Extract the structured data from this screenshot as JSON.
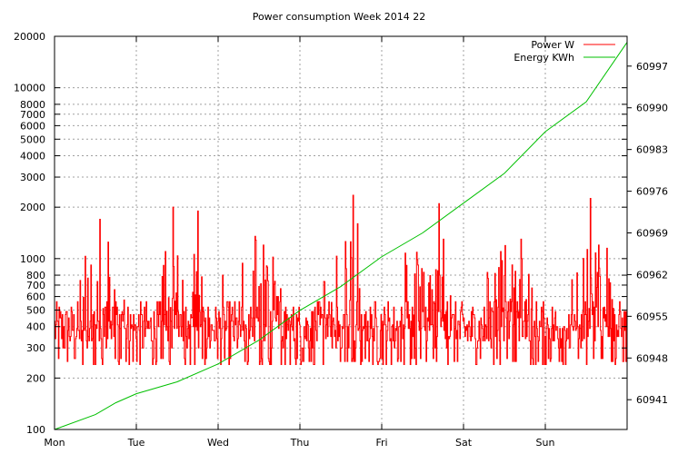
{
  "chart_data": {
    "type": "line",
    "title": "Power consumption Week 2014 22",
    "x_categories": [
      "Mon",
      "Tue",
      "Wed",
      "Thu",
      "Fri",
      "Sat",
      "Sun"
    ],
    "y_left": {
      "scale": "log",
      "range": [
        100,
        20000
      ],
      "ticks": [
        100,
        200,
        300,
        400,
        500,
        600,
        700,
        800,
        1000,
        2000,
        3000,
        4000,
        5000,
        6000,
        7000,
        8000,
        10000,
        20000
      ],
      "tick_labels": [
        "100",
        "200",
        "300",
        "400",
        "500",
        "600",
        "700",
        "800",
        "1000",
        "2000",
        "3000",
        "4000",
        "5000",
        "6000",
        "7000",
        "8000",
        "10000",
        "20000"
      ]
    },
    "y_right": {
      "range": [
        60936,
        61002
      ],
      "ticks": [
        60941,
        60948,
        60955,
        60962,
        60969,
        60976,
        60983,
        60990,
        60997
      ],
      "tick_labels": [
        "60941",
        "60948",
        "60955",
        "60962",
        "60969",
        "60976",
        "60983",
        "60990",
        "60997"
      ]
    },
    "grid": true,
    "legend_position": "top-right",
    "series": [
      {
        "name": "Power W",
        "color": "#ff0000",
        "axis": "left",
        "note_shape": "spiky baseline 240-450 W with daytime peaks",
        "peaks": [
          {
            "x": 0.55,
            "y": 1700
          },
          {
            "x": 0.65,
            "y": 1250
          },
          {
            "x": 1.35,
            "y": 1100
          },
          {
            "x": 1.45,
            "y": 2000
          },
          {
            "x": 1.75,
            "y": 1900
          },
          {
            "x": 2.05,
            "y": 800
          },
          {
            "x": 2.45,
            "y": 1350
          },
          {
            "x": 2.55,
            "y": 1200
          },
          {
            "x": 3.65,
            "y": 2350
          },
          {
            "x": 3.7,
            "y": 1600
          },
          {
            "x": 4.7,
            "y": 2100
          },
          {
            "x": 4.75,
            "y": 1300
          },
          {
            "x": 5.45,
            "y": 1100
          },
          {
            "x": 5.7,
            "y": 1300
          },
          {
            "x": 6.55,
            "y": 2250
          },
          {
            "x": 6.65,
            "y": 1200
          },
          {
            "x": 6.75,
            "y": 1150
          }
        ]
      },
      {
        "name": "Energy KWh",
        "color": "#00c000",
        "axis": "right",
        "points": [
          [
            0,
            60936
          ],
          [
            0.5,
            60938.5
          ],
          [
            0.75,
            60940.5
          ],
          [
            1,
            60942
          ],
          [
            1.5,
            60944
          ],
          [
            2,
            60947
          ],
          [
            2.5,
            60951
          ],
          [
            3,
            60956
          ],
          [
            3.5,
            60960
          ],
          [
            4,
            60965
          ],
          [
            4.5,
            60969
          ],
          [
            5,
            60974
          ],
          [
            5.5,
            60979
          ],
          [
            6,
            60986
          ],
          [
            6.5,
            60991
          ],
          [
            7,
            61001
          ]
        ]
      }
    ]
  }
}
